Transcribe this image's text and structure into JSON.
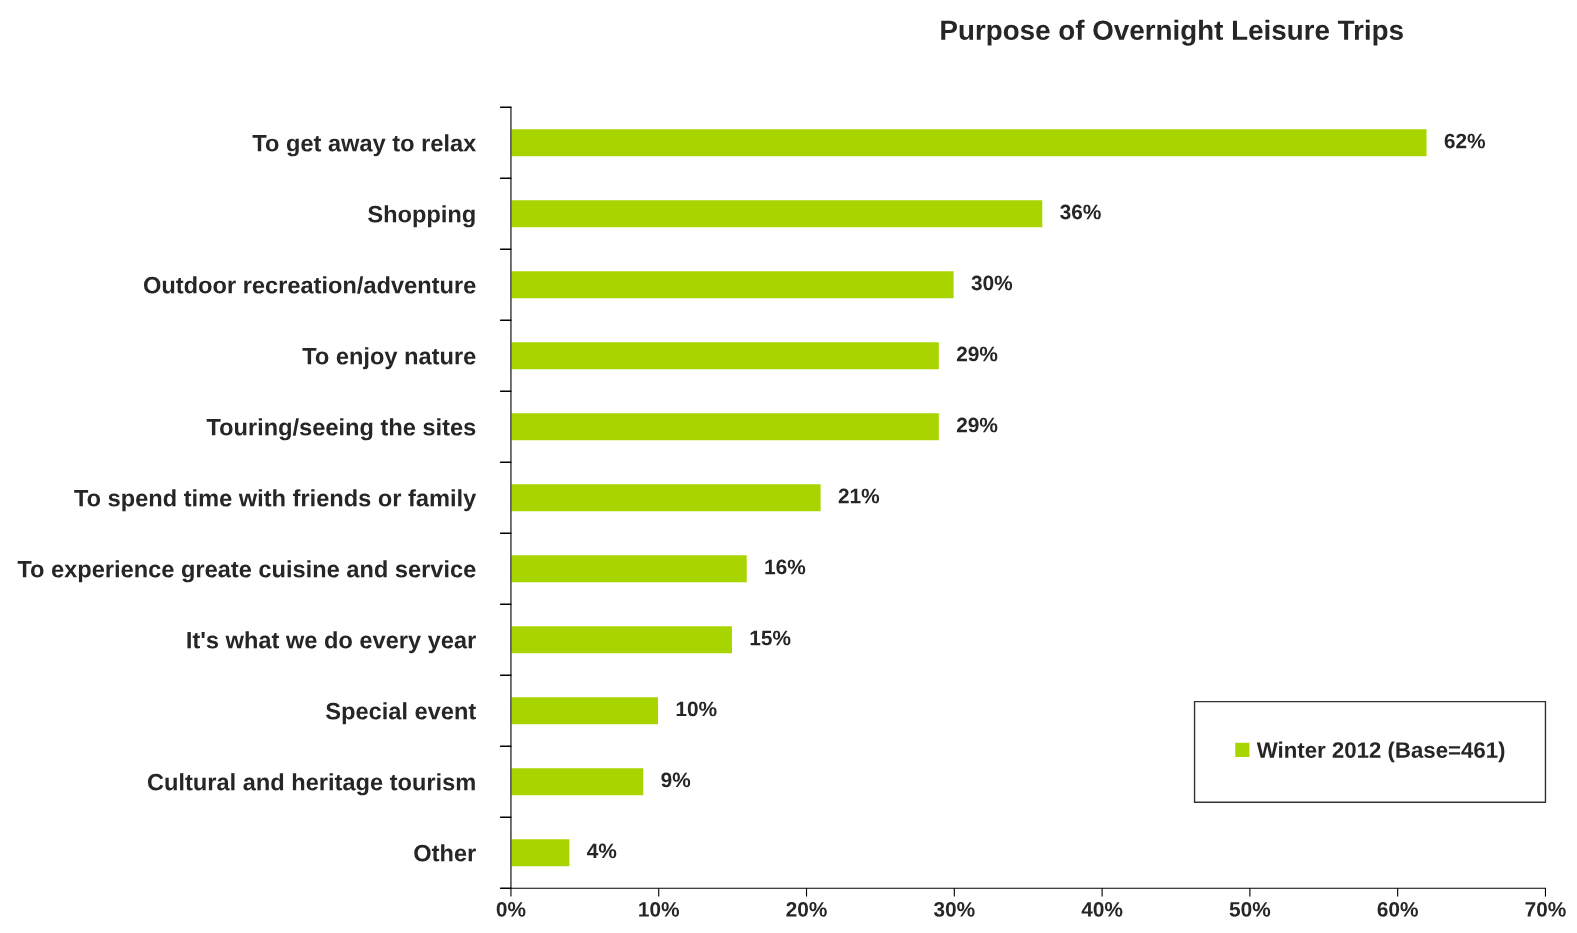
{
  "chart_data": {
    "type": "bar",
    "orientation": "horizontal",
    "title": "Purpose of Overnight Leisure Trips",
    "categories": [
      "To get away to relax",
      "Shopping",
      "Outdoor recreation/adventure",
      "To enjoy nature",
      "Touring/seeing the sites",
      "To spend time with friends or family",
      "To experience greate cuisine and service",
      "It's what we do every year",
      "Special event",
      "Cultural and heritage tourism",
      "Other"
    ],
    "series": [
      {
        "name": "Winter 2012 (Base=461)",
        "color": "#a8d400",
        "values": [
          62,
          36,
          30,
          29,
          29,
          21,
          16,
          15,
          10,
          9,
          4
        ],
        "value_labels": [
          "62%",
          "36%",
          "30%",
          "29%",
          "29%",
          "21%",
          "16%",
          "15%",
          "10%",
          "9%",
          "4%"
        ]
      }
    ],
    "xlim": [
      0,
      70
    ],
    "xticks": [
      {
        "value": 0,
        "label": "0%"
      },
      {
        "value": 10,
        "label": "10%"
      },
      {
        "value": 20,
        "label": "20%"
      },
      {
        "value": 30,
        "label": "30%"
      },
      {
        "value": 40,
        "label": "40%"
      },
      {
        "value": 50,
        "label": "50%"
      },
      {
        "value": 60,
        "label": "60%"
      },
      {
        "value": 70,
        "label": "70%"
      }
    ],
    "grid": false,
    "legend": "bottom right"
  }
}
